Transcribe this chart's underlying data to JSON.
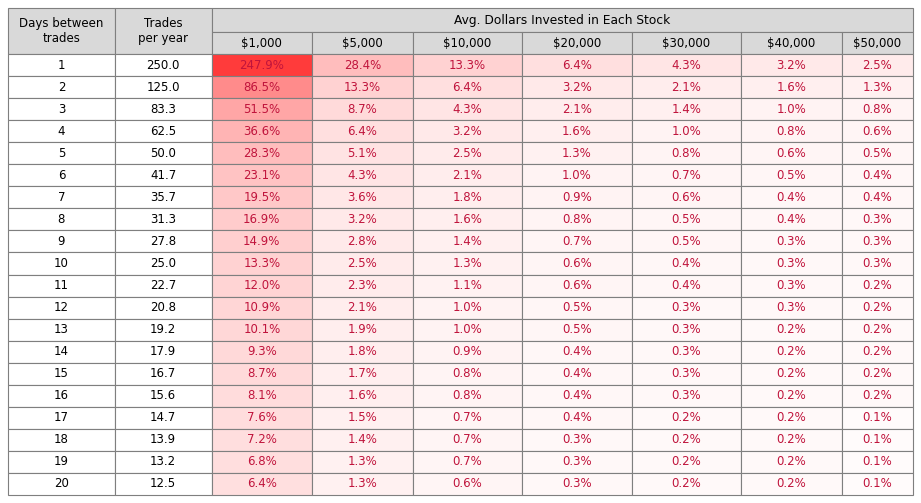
{
  "rows": [
    [
      1,
      250.0,
      "247.9%",
      "28.4%",
      "13.3%",
      "6.4%",
      "4.3%",
      "3.2%",
      "2.5%"
    ],
    [
      2,
      125.0,
      "86.5%",
      "13.3%",
      "6.4%",
      "3.2%",
      "2.1%",
      "1.6%",
      "1.3%"
    ],
    [
      3,
      83.3,
      "51.5%",
      "8.7%",
      "4.3%",
      "2.1%",
      "1.4%",
      "1.0%",
      "0.8%"
    ],
    [
      4,
      62.5,
      "36.6%",
      "6.4%",
      "3.2%",
      "1.6%",
      "1.0%",
      "0.8%",
      "0.6%"
    ],
    [
      5,
      50.0,
      "28.3%",
      "5.1%",
      "2.5%",
      "1.3%",
      "0.8%",
      "0.6%",
      "0.5%"
    ],
    [
      6,
      41.7,
      "23.1%",
      "4.3%",
      "2.1%",
      "1.0%",
      "0.7%",
      "0.5%",
      "0.4%"
    ],
    [
      7,
      35.7,
      "19.5%",
      "3.6%",
      "1.8%",
      "0.9%",
      "0.6%",
      "0.4%",
      "0.4%"
    ],
    [
      8,
      31.3,
      "16.9%",
      "3.2%",
      "1.6%",
      "0.8%",
      "0.5%",
      "0.4%",
      "0.3%"
    ],
    [
      9,
      27.8,
      "14.9%",
      "2.8%",
      "1.4%",
      "0.7%",
      "0.5%",
      "0.3%",
      "0.3%"
    ],
    [
      10,
      25.0,
      "13.3%",
      "2.5%",
      "1.3%",
      "0.6%",
      "0.4%",
      "0.3%",
      "0.3%"
    ],
    [
      11,
      22.7,
      "12.0%",
      "2.3%",
      "1.1%",
      "0.6%",
      "0.4%",
      "0.3%",
      "0.2%"
    ],
    [
      12,
      20.8,
      "10.9%",
      "2.1%",
      "1.0%",
      "0.5%",
      "0.3%",
      "0.3%",
      "0.2%"
    ],
    [
      13,
      19.2,
      "10.1%",
      "1.9%",
      "1.0%",
      "0.5%",
      "0.3%",
      "0.2%",
      "0.2%"
    ],
    [
      14,
      17.9,
      "9.3%",
      "1.8%",
      "0.9%",
      "0.4%",
      "0.3%",
      "0.2%",
      "0.2%"
    ],
    [
      15,
      16.7,
      "8.7%",
      "1.7%",
      "0.8%",
      "0.4%",
      "0.3%",
      "0.2%",
      "0.2%"
    ],
    [
      16,
      15.6,
      "8.1%",
      "1.6%",
      "0.8%",
      "0.4%",
      "0.3%",
      "0.2%",
      "0.2%"
    ],
    [
      17,
      14.7,
      "7.6%",
      "1.5%",
      "0.7%",
      "0.4%",
      "0.2%",
      "0.2%",
      "0.1%"
    ],
    [
      18,
      13.9,
      "7.2%",
      "1.4%",
      "0.7%",
      "0.3%",
      "0.2%",
      "0.2%",
      "0.1%"
    ],
    [
      19,
      13.2,
      "6.8%",
      "1.3%",
      "0.7%",
      "0.3%",
      "0.2%",
      "0.2%",
      "0.1%"
    ],
    [
      20,
      12.5,
      "6.4%",
      "1.3%",
      "0.6%",
      "0.3%",
      "0.2%",
      "0.2%",
      "0.1%"
    ]
  ],
  "color_values": [
    [
      247.9,
      28.4,
      13.3,
      6.4,
      4.3,
      3.2,
      2.5
    ],
    [
      86.5,
      13.3,
      6.4,
      3.2,
      2.1,
      1.6,
      1.3
    ],
    [
      51.5,
      8.7,
      4.3,
      2.1,
      1.4,
      1.0,
      0.8
    ],
    [
      36.6,
      6.4,
      3.2,
      1.6,
      1.0,
      0.8,
      0.6
    ],
    [
      28.3,
      5.1,
      2.5,
      1.3,
      0.8,
      0.6,
      0.5
    ],
    [
      23.1,
      4.3,
      2.1,
      1.0,
      0.7,
      0.5,
      0.4
    ],
    [
      19.5,
      3.6,
      1.8,
      0.9,
      0.6,
      0.4,
      0.4
    ],
    [
      16.9,
      3.2,
      1.6,
      0.8,
      0.5,
      0.4,
      0.3
    ],
    [
      14.9,
      2.8,
      1.4,
      0.7,
      0.5,
      0.3,
      0.3
    ],
    [
      13.3,
      2.5,
      1.3,
      0.6,
      0.4,
      0.3,
      0.3
    ],
    [
      12.0,
      2.3,
      1.1,
      0.6,
      0.4,
      0.3,
      0.2
    ],
    [
      10.9,
      2.1,
      1.0,
      0.5,
      0.3,
      0.3,
      0.2
    ],
    [
      10.1,
      1.9,
      1.0,
      0.5,
      0.3,
      0.2,
      0.2
    ],
    [
      9.3,
      1.8,
      0.9,
      0.4,
      0.3,
      0.2,
      0.2
    ],
    [
      8.7,
      1.7,
      0.8,
      0.4,
      0.3,
      0.2,
      0.2
    ],
    [
      8.1,
      1.6,
      0.8,
      0.4,
      0.3,
      0.2,
      0.2
    ],
    [
      7.6,
      1.5,
      0.7,
      0.4,
      0.2,
      0.2,
      0.1
    ],
    [
      7.2,
      1.4,
      0.7,
      0.3,
      0.2,
      0.2,
      0.1
    ],
    [
      6.8,
      1.3,
      0.7,
      0.3,
      0.2,
      0.2,
      0.1
    ],
    [
      6.4,
      1.3,
      0.6,
      0.3,
      0.2,
      0.2,
      0.1
    ]
  ],
  "dollar_labels": [
    "$1,000",
    "$5,000",
    "$10,000",
    "$20,000",
    "$30,000",
    "$40,000",
    "$50,000"
  ],
  "header_bg": "#d9d9d9",
  "data_text_color": "#c0143c",
  "border_color": "#7f7f7f",
  "white_bg": "#ffffff",
  "fig_width": 9.21,
  "fig_height": 5.03,
  "dpi": 100
}
